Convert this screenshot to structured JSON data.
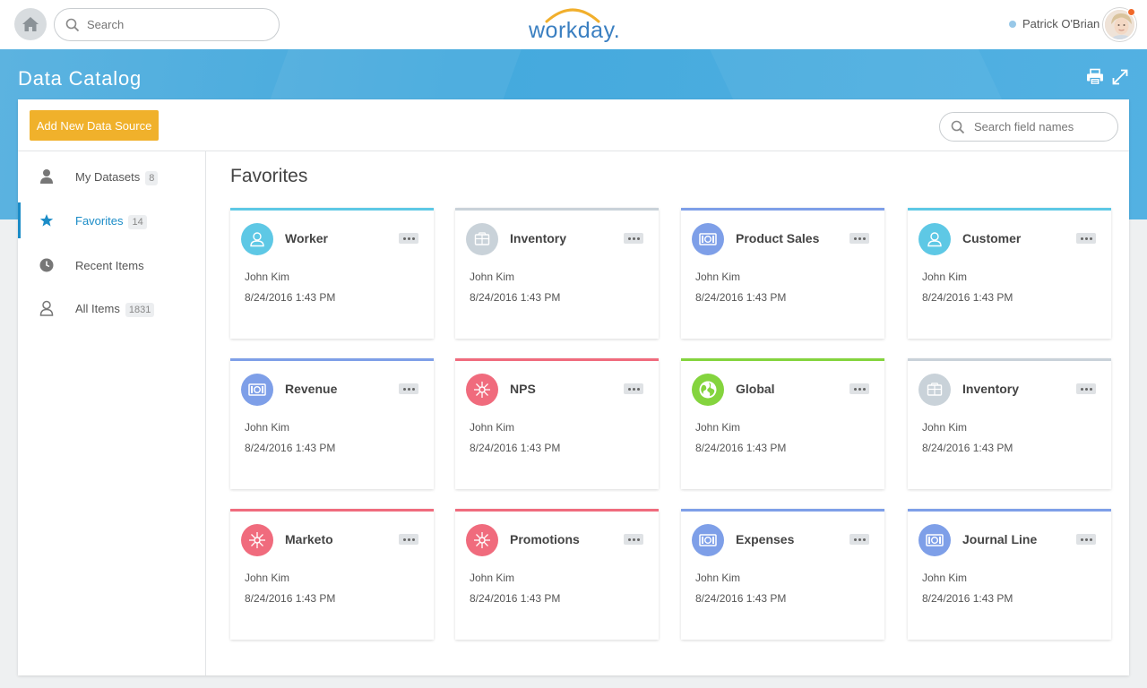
{
  "topbar": {
    "search_placeholder": "Search",
    "logo_text": "workday.",
    "user_name": "Patrick O'Brian"
  },
  "header": {
    "title": "Data Catalog"
  },
  "toolbar": {
    "add_button_label": "Add New Data Source",
    "field_search_placeholder": "Search field names"
  },
  "sidebar": {
    "items": [
      {
        "label": "My Datasets",
        "count": "8",
        "icon": "person-icon",
        "active": false
      },
      {
        "label": "Favorites",
        "count": "14",
        "icon": "star-icon",
        "active": true
      },
      {
        "label": "Recent Items",
        "count": "",
        "icon": "clock-icon",
        "active": false
      },
      {
        "label": "All Items",
        "count": "1831",
        "icon": "person-outline-icon",
        "active": false
      }
    ]
  },
  "main": {
    "title": "Favorites",
    "cards": [
      {
        "title": "Worker",
        "owner": "John Kim",
        "date": "8/24/2016 1:43 PM",
        "icon": "person-icon",
        "color": "#5ec8e5"
      },
      {
        "title": "Inventory",
        "owner": "John Kim",
        "date": "8/24/2016 1:43 PM",
        "icon": "box-icon",
        "color": "#c9d2d9"
      },
      {
        "title": "Product Sales",
        "owner": "John Kim",
        "date": "8/24/2016 1:43 PM",
        "icon": "money-icon",
        "color": "#7e9fe8"
      },
      {
        "title": "Customer",
        "owner": "John Kim",
        "date": "8/24/2016 1:43 PM",
        "icon": "person-icon",
        "color": "#5ec8e5"
      },
      {
        "title": "Revenue",
        "owner": "John Kim",
        "date": "8/24/2016 1:43 PM",
        "icon": "money-icon",
        "color": "#7e9fe8"
      },
      {
        "title": "NPS",
        "owner": "John Kim",
        "date": "8/24/2016 1:43 PM",
        "icon": "network-icon",
        "color": "#f06b7d"
      },
      {
        "title": "Global",
        "owner": "John Kim",
        "date": "8/24/2016 1:43 PM",
        "icon": "globe-icon",
        "color": "#84d43e"
      },
      {
        "title": "Inventory",
        "owner": "John Kim",
        "date": "8/24/2016 1:43 PM",
        "icon": "box-icon",
        "color": "#c9d2d9"
      },
      {
        "title": "Marketo",
        "owner": "John Kim",
        "date": "8/24/2016 1:43 PM",
        "icon": "network-icon",
        "color": "#f06b7d"
      },
      {
        "title": "Promotions",
        "owner": "John Kim",
        "date": "8/24/2016 1:43 PM",
        "icon": "network-icon",
        "color": "#f06b7d"
      },
      {
        "title": "Expenses",
        "owner": "John Kim",
        "date": "8/24/2016 1:43 PM",
        "icon": "money-icon",
        "color": "#7e9fe8"
      },
      {
        "title": "Journal Line",
        "owner": "John Kim",
        "date": "8/24/2016 1:43 PM",
        "icon": "money-icon",
        "color": "#7e9fe8"
      }
    ]
  }
}
